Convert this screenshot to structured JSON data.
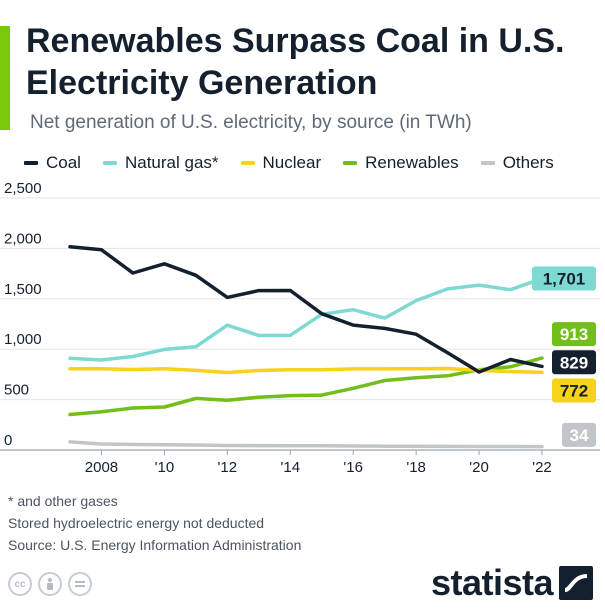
{
  "header": {
    "title": "Renewables Surpass Coal in U.S. Electricity Generation",
    "subtitle": "Net generation of U.S. electricity, by source (in TWh)"
  },
  "legend": [
    {
      "label": "Coal",
      "color": "#14202e"
    },
    {
      "label": "Natural gas*",
      "color": "#7dd9d2"
    },
    {
      "label": "Nuclear",
      "color": "#f6d21a"
    },
    {
      "label": "Renewables",
      "color": "#72bf1c"
    },
    {
      "label": "Others",
      "color": "#c2c6ca"
    }
  ],
  "chart_data": {
    "type": "line",
    "title": "Renewables Surpass Coal in U.S. Electricity Generation",
    "subtitle": "Net generation of U.S. electricity, by source (in TWh)",
    "x": [
      2007,
      2008,
      2009,
      2010,
      2011,
      2012,
      2013,
      2014,
      2015,
      2016,
      2017,
      2018,
      2019,
      2020,
      2021,
      2022
    ],
    "xticks": [
      2008,
      2010,
      2012,
      2014,
      2016,
      2018,
      2020,
      2022
    ],
    "xtick_labels": [
      "2008",
      "'10",
      "'12",
      "'14",
      "'16",
      "'18",
      "'20",
      "'22"
    ],
    "ylim": [
      0,
      2500
    ],
    "yticks": [
      0,
      500,
      1000,
      1500,
      2000,
      2500
    ],
    "ytick_labels": [
      "0",
      "500",
      "1,000",
      "1,500",
      "2,000",
      "2,500"
    ],
    "grid": true,
    "legend_position": "top",
    "series": [
      {
        "name": "Coal",
        "color": "#14202e",
        "values": [
          2016,
          1986,
          1756,
          1847,
          1733,
          1514,
          1581,
          1582,
          1352,
          1239,
          1206,
          1149,
          965,
          774,
          898,
          829
        ]
      },
      {
        "name": "Natural gas*",
        "color": "#7dd9d2",
        "values": [
          910,
          893,
          928,
          998,
          1025,
          1238,
          1136,
          1138,
          1346,
          1392,
          1309,
          1482,
          1598,
          1636,
          1590,
          1701
        ]
      },
      {
        "name": "Nuclear",
        "color": "#f6d21a",
        "values": [
          806,
          806,
          799,
          807,
          790,
          769,
          789,
          797,
          797,
          805,
          805,
          807,
          809,
          790,
          778,
          772
        ]
      },
      {
        "name": "Renewables",
        "color": "#72bf1c",
        "values": [
          352,
          380,
          417,
          427,
          512,
          494,
          524,
          540,
          545,
          612,
          689,
          716,
          736,
          796,
          825,
          913
        ]
      },
      {
        "name": "Others",
        "color": "#c2c6ca",
        "values": [
          80,
          60,
          55,
          52,
          50,
          45,
          44,
          43,
          42,
          40,
          38,
          37,
          36,
          35,
          35,
          34
        ]
      }
    ],
    "end_labels": [
      {
        "series": "Natural gas*",
        "text": "1,701",
        "value": 1701,
        "bg": "#7dd9d2",
        "fg": "#14202e"
      },
      {
        "series": "Renewables",
        "text": "913",
        "value": 913,
        "bg": "#72bf1c",
        "fg": "#ffffff"
      },
      {
        "series": "Coal",
        "text": "829",
        "value": 829,
        "bg": "#14202e",
        "fg": "#ffffff"
      },
      {
        "series": "Nuclear",
        "text": "772",
        "value": 772,
        "bg": "#f6d21a",
        "fg": "#14202e"
      },
      {
        "series": "Others",
        "text": "34",
        "value": 34,
        "bg": "#c2c6ca",
        "fg": "#ffffff"
      }
    ]
  },
  "footnotes": {
    "line1": "* and other gases",
    "line2": "Stored hydroelectric energy not deducted",
    "line3": "Source: U.S. Energy Information Administration"
  },
  "brand": {
    "name": "statista",
    "color": "#14202e"
  },
  "license_icons": [
    "cc-icon",
    "attribution-icon",
    "no-derivatives-icon"
  ]
}
